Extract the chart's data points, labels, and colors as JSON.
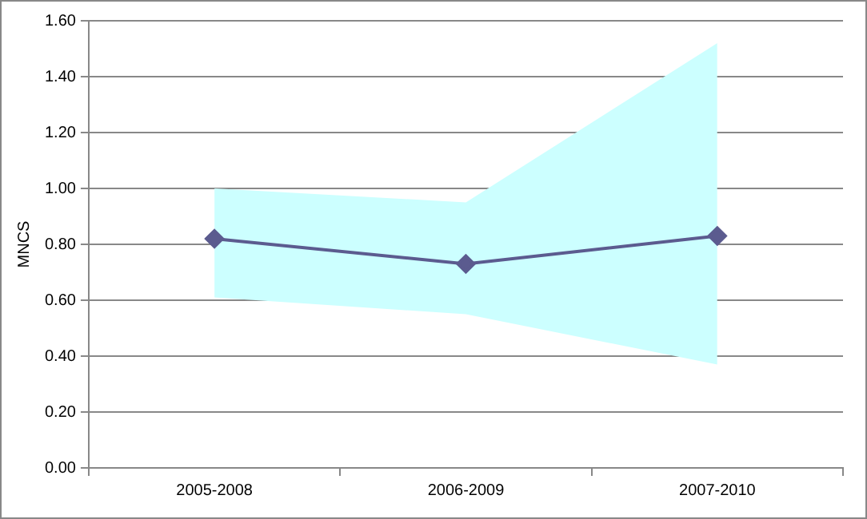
{
  "chart_data": {
    "type": "line",
    "ylabel": "MNCS",
    "categories": [
      "2005-2008",
      "2006-2009",
      "2007-2010"
    ],
    "series": [
      {
        "color": "#5b5b8f",
        "values": [
          0.82,
          0.73,
          0.83
        ],
        "lower": [
          0.61,
          0.55,
          0.37
        ],
        "upper": [
          1.0,
          0.95,
          1.52
        ]
      }
    ],
    "ylim": [
      0,
      1.6
    ],
    "yticks": [
      {
        "value": 0,
        "label": "0.00"
      },
      {
        "value": 0.2,
        "label": "0.20"
      },
      {
        "value": 0.4,
        "label": "0.40"
      },
      {
        "value": 0.6,
        "label": "0.60"
      },
      {
        "value": 0.8,
        "label": "0.80"
      },
      {
        "value": 1.0,
        "label": "1.00"
      },
      {
        "value": 1.2,
        "label": "1.20"
      },
      {
        "value": 1.4,
        "label": "1.40"
      },
      {
        "value": 1.6,
        "label": "1.60"
      }
    ],
    "grid": "y",
    "legend": false,
    "marker": "diamond",
    "line_style": "solid"
  }
}
